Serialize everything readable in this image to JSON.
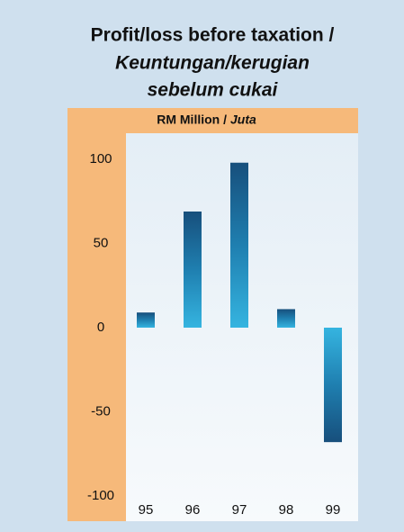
{
  "chart_data": {
    "type": "bar",
    "title": "Profit/loss before taxation /",
    "subtitle": [
      "Keuntungan/kerugian",
      "sebelum cukai"
    ],
    "ylabel": [
      "RM Million /",
      "Juta"
    ],
    "categories": [
      "95",
      "96",
      "97",
      "98",
      "99"
    ],
    "values": [
      9,
      69,
      98,
      11,
      -68
    ],
    "color": "#1f7fb0",
    "ylim": [
      -100,
      100
    ],
    "yticks": [
      -100,
      -50,
      0,
      50,
      100
    ],
    "grid": false
  }
}
